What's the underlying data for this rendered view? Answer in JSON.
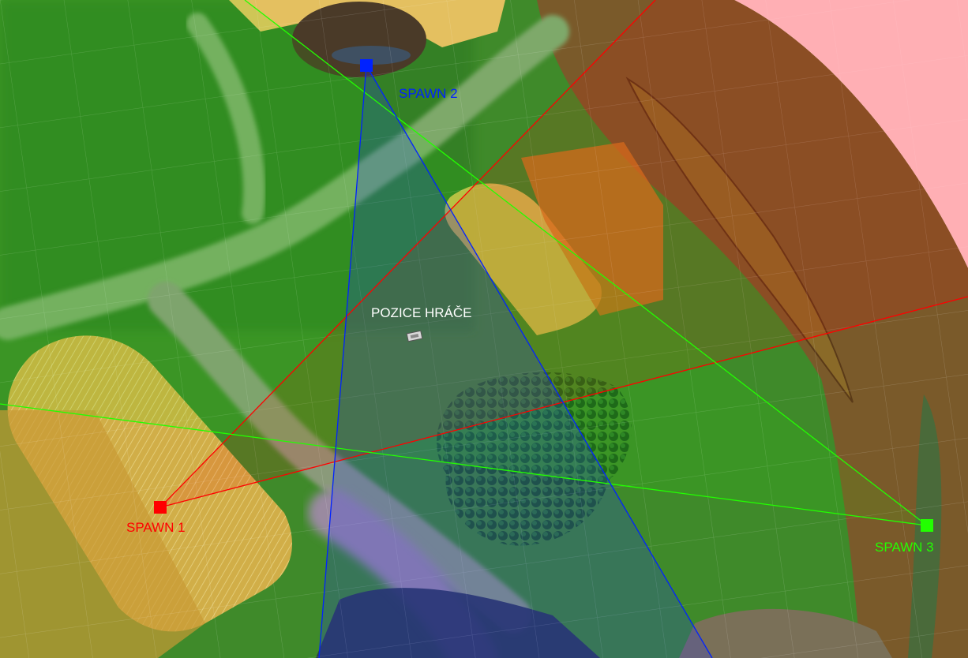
{
  "labels": {
    "spawn1": "SPAWN 1",
    "spawn2": "SPAWN 2",
    "spawn3": "SPAWN 3",
    "player": "POZICE HRÁČE"
  },
  "colors": {
    "spawn1": "#ff0000",
    "spawn2": "#0022ff",
    "spawn3": "#22ff00",
    "player_label": "#ffffff",
    "out_of_bounds": "#ffc9cf"
  },
  "icons": {
    "spawn_marker": "square-marker",
    "player_marker": "player-marker"
  }
}
